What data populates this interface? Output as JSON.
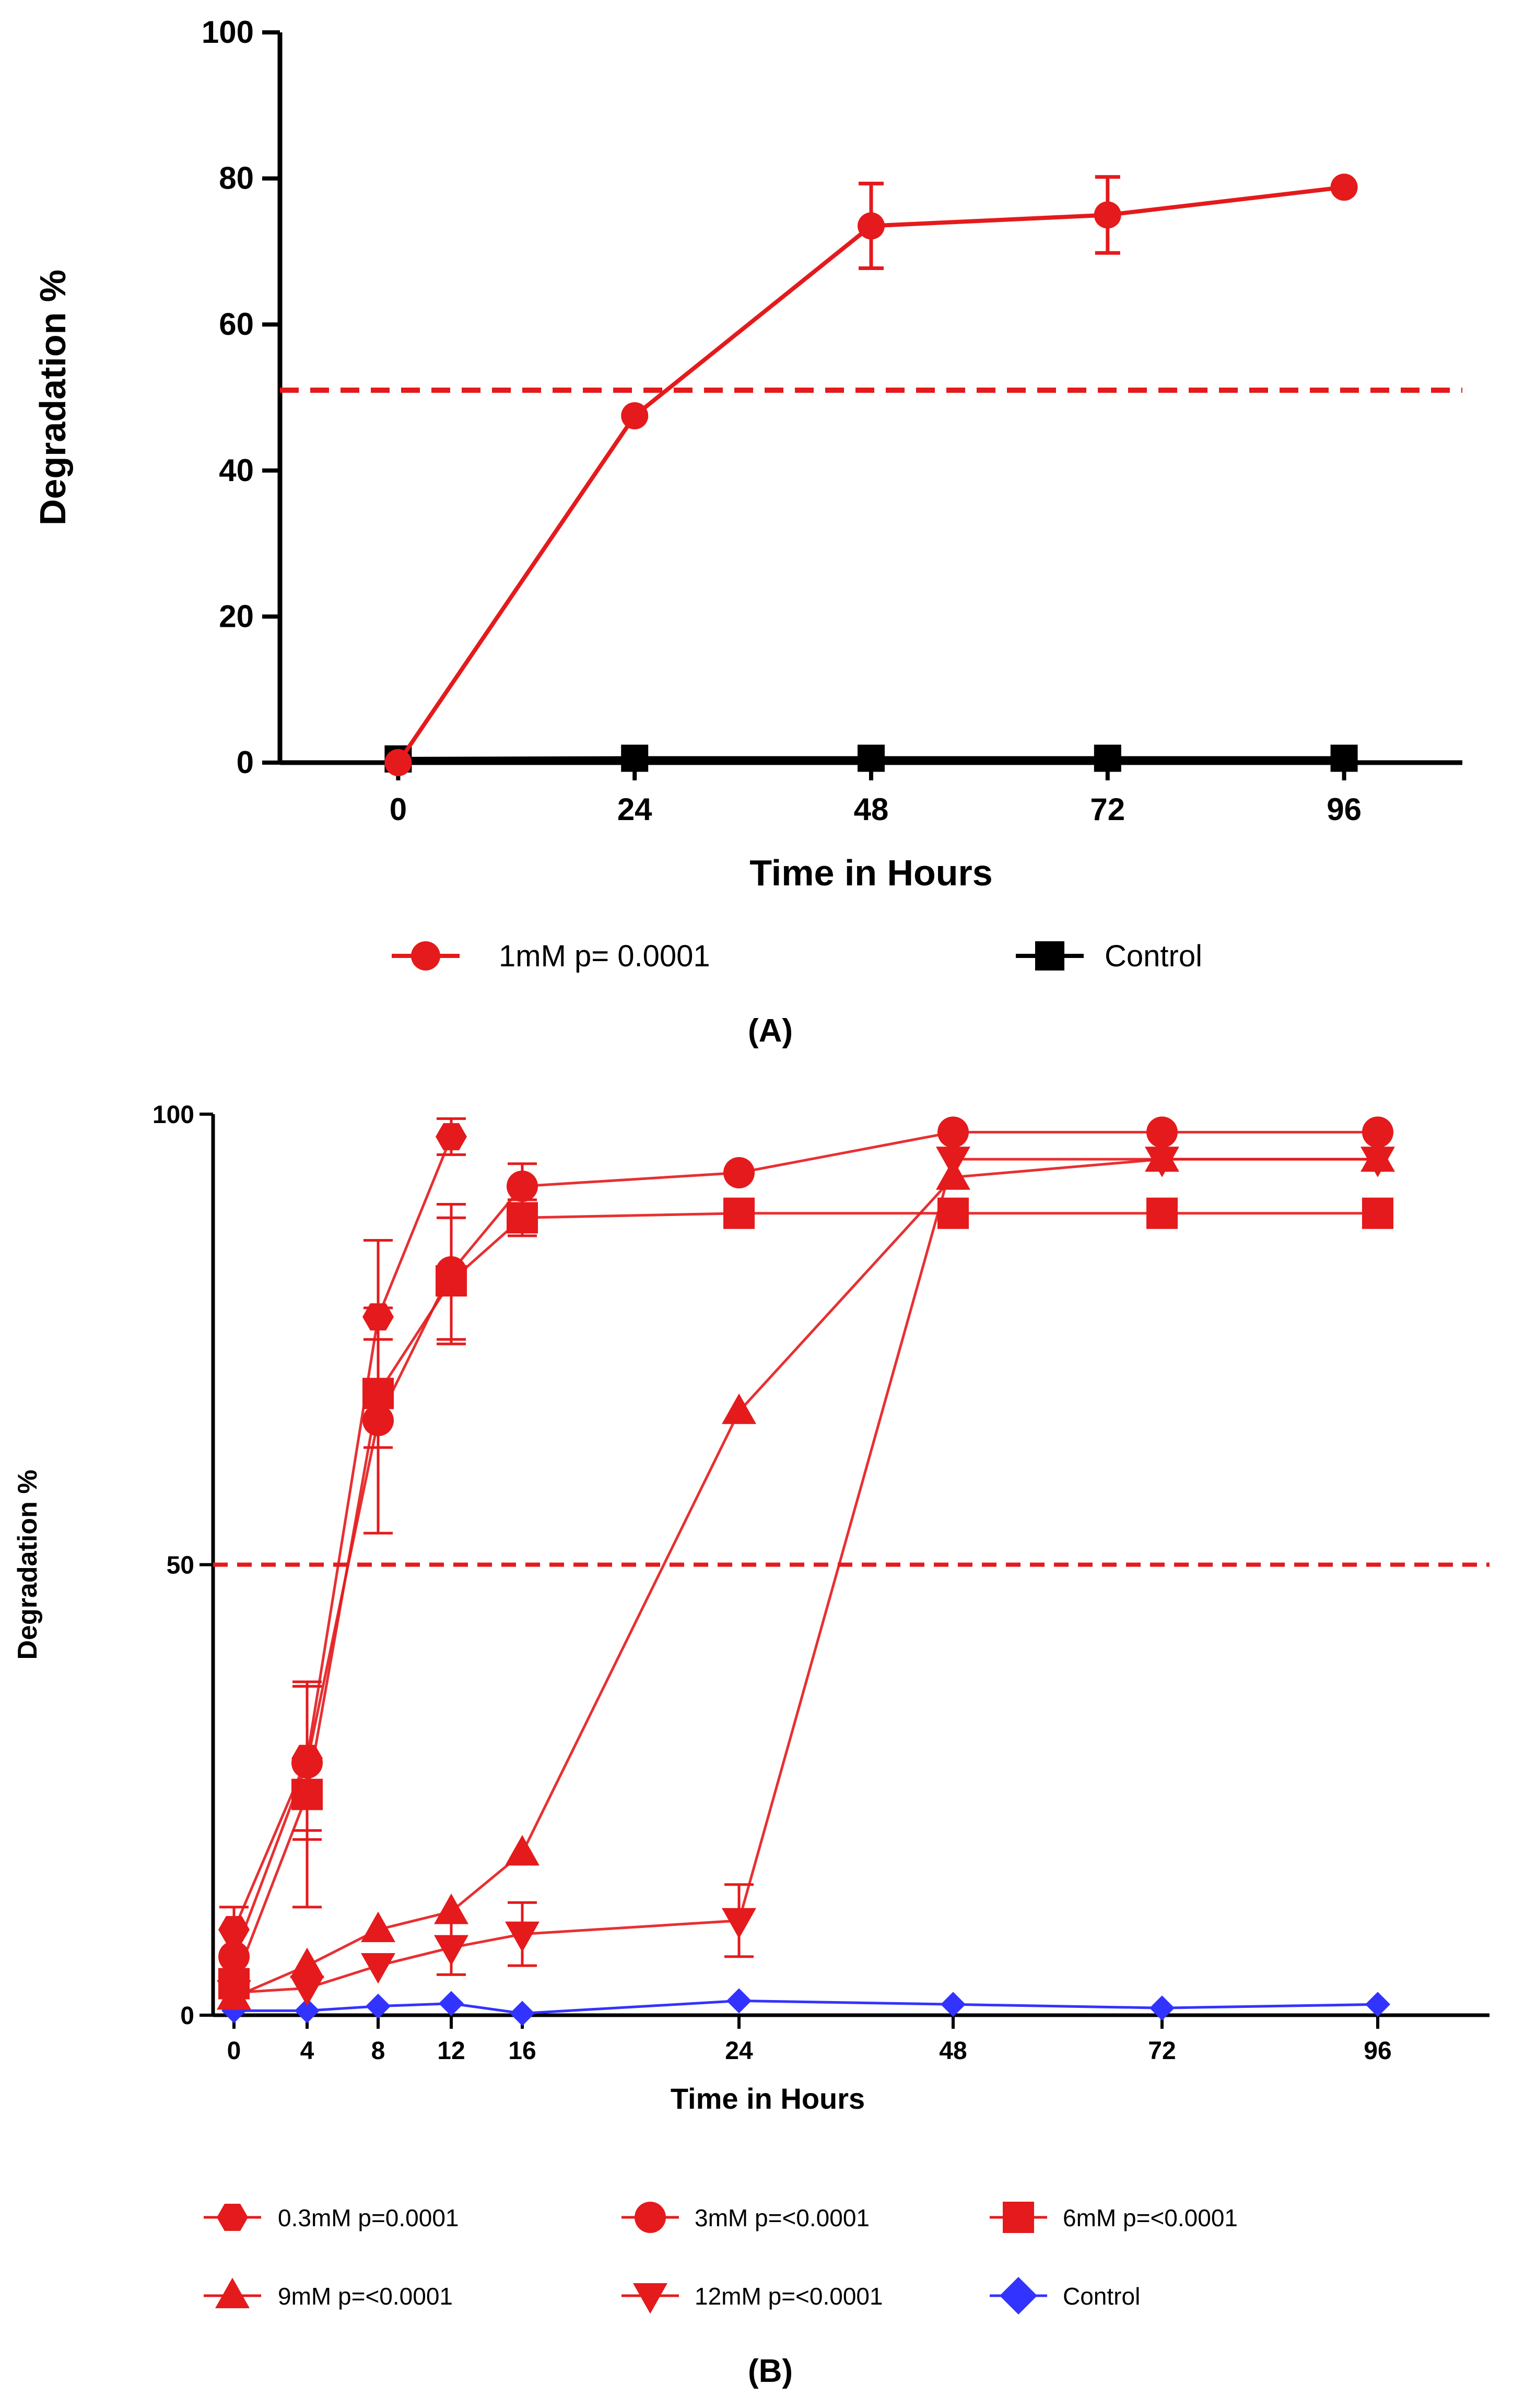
{
  "chart_data": [
    {
      "type": "line",
      "panel_label": "(A)",
      "xlabel": "Time in Hours",
      "ylabel": "Degradation %",
      "x": [
        0,
        24,
        48,
        72,
        96
      ],
      "x_ticks": [
        "0",
        "24",
        "48",
        "72",
        "96"
      ],
      "y_ticks": [
        "0",
        "20",
        "40",
        "60",
        "80",
        "100"
      ],
      "xlim": [
        -12,
        108
      ],
      "ylim": [
        0,
        100
      ],
      "reference_line": {
        "y": 51,
        "style": "dashed",
        "color": "#e41a1c"
      },
      "series": [
        {
          "name": "1mM p= 0.0001",
          "marker": "circle",
          "color": "#e41a1c",
          "values": [
            0,
            47.5,
            73.5,
            75,
            78.8
          ],
          "errors": [
            0,
            0,
            5.8,
            5.2,
            0
          ]
        },
        {
          "name": "Control",
          "marker": "square",
          "color": "#000000",
          "values": [
            0.5,
            0.6,
            0.6,
            0.6,
            0.6
          ],
          "errors": [
            0,
            0,
            0,
            0,
            0
          ]
        }
      ],
      "legend_position": "bottom"
    },
    {
      "type": "line",
      "panel_label": "(B)",
      "xlabel": "Time in Hours",
      "ylabel": "Degradation %",
      "x_ticks": [
        "0",
        "4",
        "8",
        "12",
        "16",
        "24",
        "48",
        "72",
        "96"
      ],
      "y_ticks": [
        "0",
        "50",
        "100"
      ],
      "ylim": [
        0,
        100
      ],
      "reference_line": {
        "y": 50,
        "style": "dashed",
        "color": "#e41a1c"
      },
      "series": [
        {
          "name": "0.3mM p=0.0001",
          "marker": "hexagon",
          "color": "#e41a1c",
          "x": [
            0,
            4,
            8,
            12
          ],
          "values": [
            9.5,
            28.5,
            77.5,
            97.5
          ],
          "errors": [
            2.5,
            8,
            8.5,
            2
          ]
        },
        {
          "name": "3mM p=<0.0001",
          "marker": "circle",
          "color": "#e41a1c",
          "x": [
            0,
            4,
            8,
            12,
            16,
            24,
            48,
            72,
            96
          ],
          "values": [
            6.5,
            28,
            66,
            82.5,
            92,
            93.5,
            98,
            98,
            98
          ],
          "errors": [
            0,
            8.5,
            12.5,
            7.5,
            2.5,
            0,
            0,
            0,
            0
          ]
        },
        {
          "name": "6mM p=<0.0001",
          "marker": "square",
          "color": "#e41a1c",
          "x": [
            0,
            4,
            8,
            12,
            16,
            24,
            48,
            72,
            96
          ],
          "values": [
            3.5,
            24.5,
            69,
            81.5,
            88.5,
            89,
            89,
            89,
            89
          ],
          "errors": [
            0,
            12.5,
            6,
            7,
            2,
            0,
            0,
            0,
            0
          ]
        },
        {
          "name": "9mM p=<0.0001",
          "marker": "triangle-up",
          "color": "#e41a1c",
          "x": [
            0,
            4,
            8,
            12,
            16,
            24,
            48,
            72,
            96
          ],
          "values": [
            2,
            5.5,
            9.5,
            11.5,
            18,
            67,
            93,
            95,
            95
          ],
          "errors": [
            0,
            0,
            0,
            0,
            0,
            0,
            0,
            0,
            0
          ]
        },
        {
          "name": "12mM p=<0.0001",
          "marker": "triangle-down",
          "color": "#e41a1c",
          "x": [
            0,
            4,
            8,
            12,
            16,
            24,
            48,
            72,
            96
          ],
          "values": [
            2.5,
            3,
            5.5,
            7.5,
            9,
            10.5,
            95,
            95,
            95
          ],
          "errors": [
            0,
            0,
            0,
            3,
            3.5,
            4,
            0,
            0,
            0
          ]
        },
        {
          "name": "Control",
          "marker": "diamond",
          "color": "#3333ff",
          "x": [
            0,
            4,
            8,
            12,
            16,
            24,
            48,
            72,
            96
          ],
          "values": [
            0.5,
            0.5,
            1,
            1.3,
            0.2,
            1.6,
            1.2,
            0.8,
            1.2
          ],
          "errors": [
            0,
            0,
            0,
            0,
            0,
            0,
            0,
            0,
            0
          ]
        }
      ],
      "legend_position": "bottom"
    }
  ]
}
